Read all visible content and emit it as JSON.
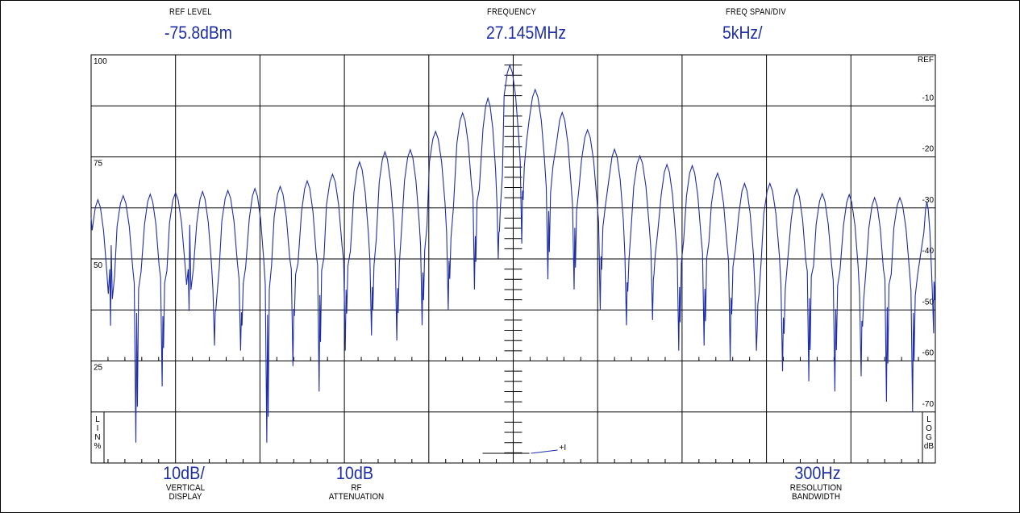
{
  "header": {
    "ref_level_label": "REF LEVEL",
    "ref_level_value": "-75.8dBm",
    "frequency_label": "FREQUENCY",
    "frequency_value": "27.145MHz",
    "span_label": "FREQ SPAN/DIV",
    "span_value": "5kHz/"
  },
  "footer": {
    "vertical_value": "10dB/",
    "vertical_label_1": "VERTICAL",
    "vertical_label_2": "DISPLAY",
    "rf_value": "10dB",
    "rf_label_1": "RF",
    "rf_label_2": "ATTENUATION",
    "rbw_value": "300Hz",
    "rbw_label_1": "RESOLUTION",
    "rbw_label_2": "BANDWIDTH"
  },
  "scale_tags": {
    "lin": [
      "L",
      "I",
      "N",
      "%"
    ],
    "log": [
      "L",
      "O",
      "G",
      "dB"
    ]
  },
  "marker_text": "+I",
  "colors": {
    "trace": "#1e2ea8",
    "grid": "#000000",
    "background": "#ffffff"
  },
  "chart_data": {
    "type": "line",
    "title": "",
    "xlabel": "",
    "ylabel": "",
    "x_divisions": 10,
    "y_divisions": 8,
    "left_axis": {
      "scale": "LIN %",
      "ticks": [
        {
          "label": "100",
          "value": 100
        },
        {
          "label": "75",
          "value": 75
        },
        {
          "label": "50",
          "value": 50
        },
        {
          "label": "25",
          "value": 25
        }
      ]
    },
    "right_axis": {
      "scale": "LOG dB",
      "ticks": [
        {
          "label": "REF",
          "value": 0
        },
        {
          "label": "-10",
          "value": -10
        },
        {
          "label": "-20",
          "value": -20
        },
        {
          "label": "-30",
          "value": -30
        },
        {
          "label": "-40",
          "value": -40
        },
        {
          "label": "-50",
          "value": -50
        },
        {
          "label": "-60",
          "value": -60
        },
        {
          "label": "-70",
          "value": -70
        }
      ]
    },
    "ylim_db": [
      -80,
      0
    ],
    "xlim_khz": [
      -25,
      25
    ],
    "center_frequency": "27.145MHz",
    "span_per_div": "5kHz/",
    "grid": true,
    "series": [
      {
        "peaks_khz": [
          -24.6,
          -23.1,
          -21.5,
          -20.0,
          -18.4,
          -16.9,
          -15.3,
          -13.8,
          -12.2,
          -10.7,
          -9.1,
          -7.6,
          -6.1,
          -4.6,
          -3.0,
          -1.5,
          -0.2,
          1.3,
          2.9,
          4.4,
          6.0,
          7.5,
          9.1,
          10.6,
          12.1,
          13.7,
          15.2,
          16.8,
          18.3,
          19.9,
          21.4,
          22.9,
          24.5
        ],
        "peak_levels_db": [
          -28.4,
          -27.6,
          -27.3,
          -27.0,
          -26.8,
          -26.6,
          -26.2,
          -25.8,
          -24.7,
          -23.4,
          -21.0,
          -19.0,
          -18.6,
          -15.0,
          -11.4,
          -8.5,
          -2.0,
          -6.8,
          -11.3,
          -14.7,
          -18.5,
          -19.8,
          -21.5,
          -21.7,
          -23.2,
          -25.2,
          -25.2,
          -26.3,
          -27.2,
          -27.4,
          -28.0,
          -28.0,
          -28.8
        ],
        "null_levels_db": [
          -42,
          -76,
          -65,
          -42,
          -57,
          -58,
          -76,
          -61,
          -66,
          -58,
          -55,
          -56,
          -53,
          -50,
          -46,
          -40,
          -37,
          -44,
          -46,
          -50,
          -53,
          -52,
          -58,
          -57,
          -60,
          -58,
          -62,
          -64,
          -66,
          -63,
          -68,
          -70,
          -52
        ]
      }
    ]
  }
}
